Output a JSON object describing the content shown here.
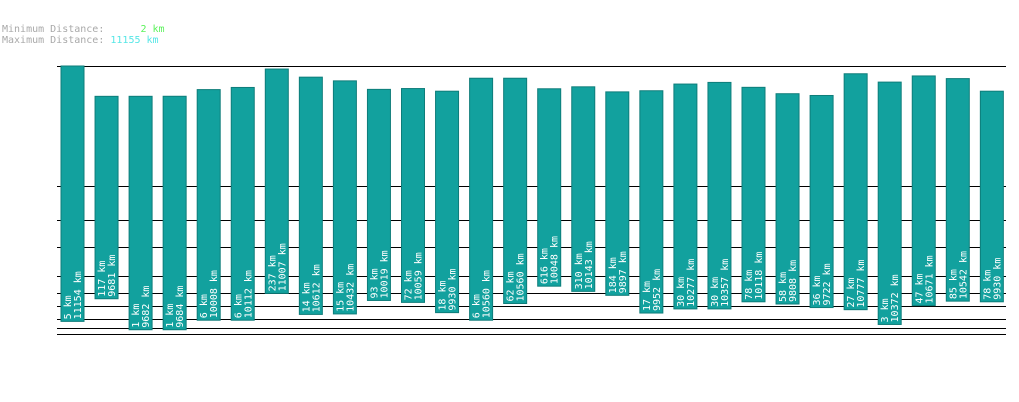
{
  "legend": {
    "min_label": "Minimum Distance:",
    "min_value": "2 km",
    "max_label": "Maximum Distance:",
    "max_value": "11155 km"
  },
  "colors": {
    "bar": "#12a19e",
    "bar_stroke": "#0e7d7a",
    "min_text": "#5cf25c",
    "max_text": "#55e6e6",
    "grid": "#000000"
  },
  "chart_data": {
    "type": "bar",
    "legend_position": "top-left",
    "grid": true,
    "bars": [
      {
        "a": 5,
        "b": 11154
      },
      {
        "a": 117,
        "b": 9681
      },
      {
        "a": 1,
        "b": 9682
      },
      {
        "a": 1,
        "b": 9684
      },
      {
        "a": 6,
        "b": 10008
      },
      {
        "a": 6,
        "b": 10112
      },
      {
        "a": 237,
        "b": 11007
      },
      {
        "a": 14,
        "b": 10612
      },
      {
        "a": 15,
        "b": 10432
      },
      {
        "a": 93,
        "b": 10019
      },
      {
        "a": 72,
        "b": 10059
      },
      {
        "a": 18,
        "b": 9930
      },
      {
        "a": 6,
        "b": 10560
      },
      {
        "a": 62,
        "b": 10560
      },
      {
        "a": 616,
        "b": 10048
      },
      {
        "a": 310,
        "b": 10143
      },
      {
        "a": 184,
        "b": 9897
      },
      {
        "a": 17,
        "b": 9952
      },
      {
        "a": 30,
        "b": 10277
      },
      {
        "a": 30,
        "b": 10357
      },
      {
        "a": 78,
        "b": 10118
      },
      {
        "a": 58,
        "b": 9808
      },
      {
        "a": 36,
        "b": 9722
      },
      {
        "a": 27,
        "b": 10777
      },
      {
        "a": 3,
        "b": 10372
      },
      {
        "a": 47,
        "b": 10671
      },
      {
        "a": 85,
        "b": 10542
      },
      {
        "a": 78,
        "b": 9930
      }
    ]
  }
}
